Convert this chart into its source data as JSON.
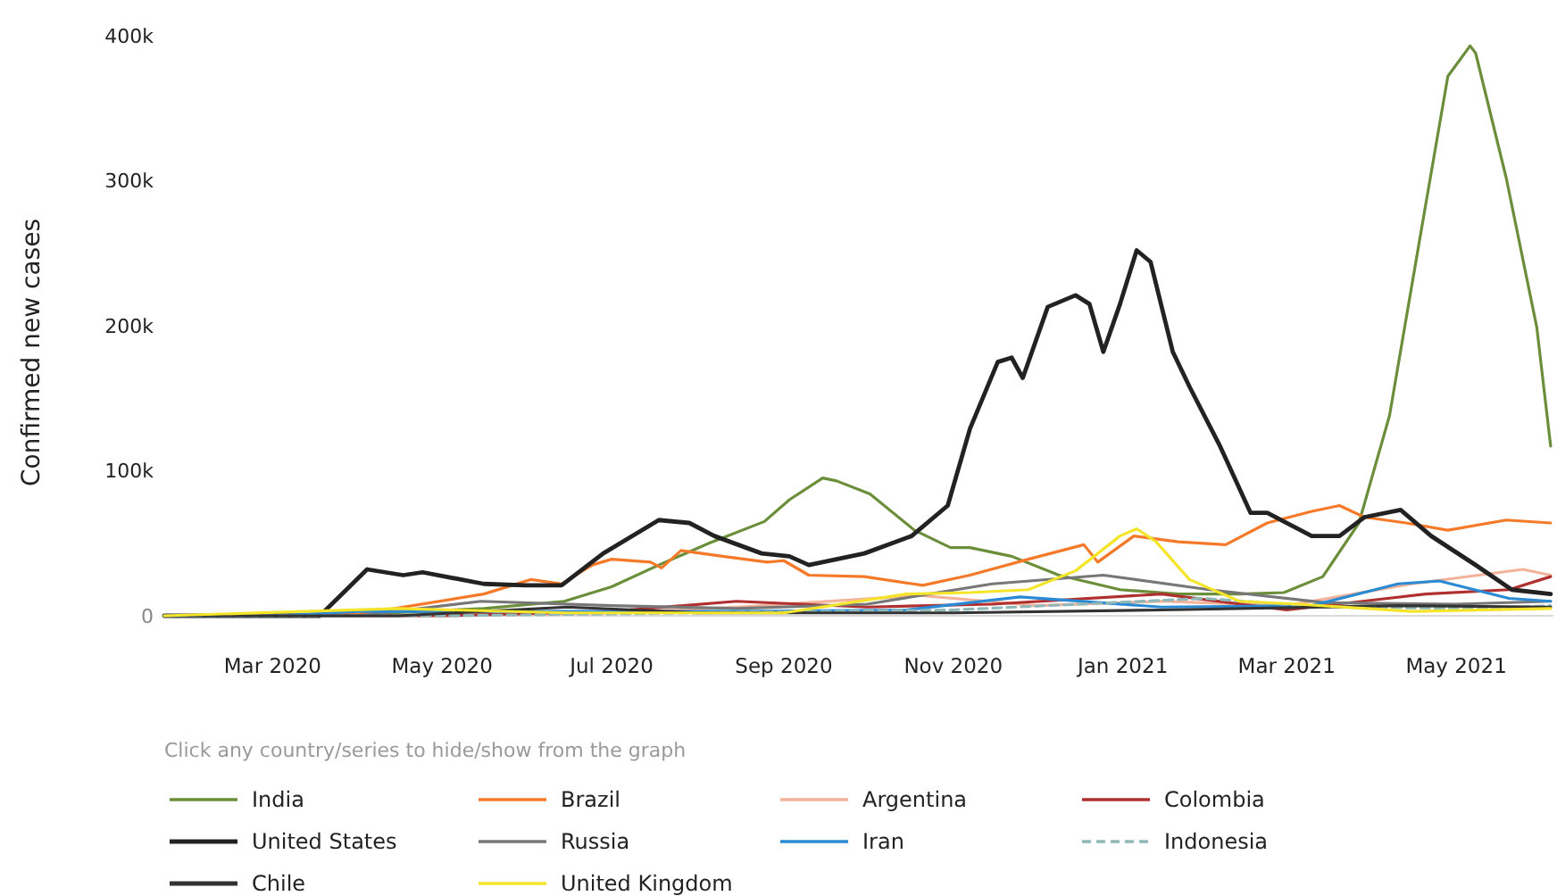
{
  "chart_data": {
    "type": "line",
    "ylabel": "Confirmed new cases",
    "xlim": [
      "2020-01-22",
      "2021-06-05"
    ],
    "xticks": [
      {
        "value": "2020-03-01",
        "label": "Mar 2020"
      },
      {
        "value": "2020-05-01",
        "label": "May 2020"
      },
      {
        "value": "2020-07-01",
        "label": "Jul 2020"
      },
      {
        "value": "2020-09-01",
        "label": "Sep 2020"
      },
      {
        "value": "2020-11-01",
        "label": "Nov 2020"
      },
      {
        "value": "2021-01-01",
        "label": "Jan 2021"
      },
      {
        "value": "2021-03-01",
        "label": "Mar 2021"
      },
      {
        "value": "2021-05-01",
        "label": "May 2021"
      }
    ],
    "ylim": [
      0,
      400000
    ],
    "yticks": [
      {
        "value": 0,
        "label": "0"
      },
      {
        "value": 100000,
        "label": "100k"
      },
      {
        "value": 200000,
        "label": "200k"
      },
      {
        "value": 300000,
        "label": "300k"
      },
      {
        "value": 400000,
        "label": "400k"
      }
    ],
    "grid": false,
    "legend": "bottom",
    "marker": "none",
    "line_style": "solid",
    "annotations": [
      "Click any country/series to hide/show from the graph"
    ],
    "series": [
      {
        "name": "India",
        "color": "#6b8e3a",
        "x": [
          "2020-01-22",
          "2020-04-01",
          "2020-05-16",
          "2020-06-14",
          "2020-07-01",
          "2020-07-18",
          "2020-08-05",
          "2020-08-25",
          "2020-09-03",
          "2020-09-15",
          "2020-09-20",
          "2020-10-02",
          "2020-10-18",
          "2020-10-31",
          "2020-11-07",
          "2020-11-22",
          "2020-12-09",
          "2020-12-31",
          "2021-01-21",
          "2021-02-12",
          "2021-02-28",
          "2021-03-14",
          "2021-03-27",
          "2021-04-07",
          "2021-04-18",
          "2021-04-28",
          "2021-05-06",
          "2021-05-08",
          "2021-05-19",
          "2021-05-30",
          "2021-06-04"
        ],
        "values": [
          0,
          1000,
          5000,
          10000,
          20000,
          35000,
          50000,
          65000,
          80000,
          95000,
          93000,
          84000,
          59000,
          47000,
          47000,
          41000,
          28000,
          18000,
          15000,
          15000,
          16000,
          27000,
          64000,
          138000,
          261000,
          372000,
          393000,
          388000,
          302000,
          199000,
          117000
        ]
      },
      {
        "name": "Brazil",
        "color": "#f47a2a",
        "x": [
          "2020-01-22",
          "2020-04-01",
          "2020-05-16",
          "2020-06-02",
          "2020-06-13",
          "2020-06-24",
          "2020-07-01",
          "2020-07-15",
          "2020-07-19",
          "2020-07-26",
          "2020-08-10",
          "2020-08-26",
          "2020-09-01",
          "2020-09-10",
          "2020-09-30",
          "2020-10-21",
          "2020-11-07",
          "2020-11-28",
          "2020-12-18",
          "2020-12-23",
          "2021-01-05",
          "2021-01-21",
          "2021-02-07",
          "2021-02-22",
          "2021-03-10",
          "2021-03-20",
          "2021-03-29",
          "2021-04-13",
          "2021-04-28",
          "2021-05-19",
          "2021-06-04"
        ],
        "values": [
          0,
          1000,
          15000,
          25000,
          22000,
          35000,
          39000,
          37000,
          33000,
          45000,
          41000,
          37000,
          38000,
          28000,
          27000,
          21000,
          28000,
          39000,
          49000,
          37000,
          55000,
          51000,
          49000,
          64000,
          72000,
          76000,
          68000,
          64000,
          59000,
          66000,
          64000
        ]
      },
      {
        "name": "Argentina",
        "color": "#f2b39a",
        "x": [
          "2020-01-22",
          "2020-05-01",
          "2020-07-01",
          "2020-08-15",
          "2020-10-20",
          "2020-12-01",
          "2021-01-15",
          "2021-03-01",
          "2021-04-15",
          "2021-05-25",
          "2021-06-04"
        ],
        "values": [
          0,
          0,
          2000,
          6000,
          14000,
          7000,
          10000,
          7000,
          22000,
          32000,
          28000
        ]
      },
      {
        "name": "Colombia",
        "color": "#b03030",
        "x": [
          "2020-01-22",
          "2020-05-01",
          "2020-07-01",
          "2020-08-15",
          "2020-10-01",
          "2020-11-15",
          "2021-01-15",
          "2021-03-01",
          "2021-04-20",
          "2021-05-20",
          "2021-06-04"
        ],
        "values": [
          0,
          0,
          3000,
          10000,
          6000,
          8000,
          15000,
          4000,
          15000,
          18000,
          27000
        ]
      },
      {
        "name": "United States",
        "color": "#222222",
        "x": [
          "2020-01-22",
          "2020-03-18",
          "2020-04-04",
          "2020-04-17",
          "2020-04-24",
          "2020-05-16",
          "2020-05-31",
          "2020-06-13",
          "2020-06-28",
          "2020-07-18",
          "2020-07-29",
          "2020-08-07",
          "2020-08-24",
          "2020-09-03",
          "2020-09-10",
          "2020-09-30",
          "2020-10-17",
          "2020-10-30",
          "2020-11-07",
          "2020-11-17",
          "2020-11-22",
          "2020-11-26",
          "2020-12-05",
          "2020-12-15",
          "2020-12-20",
          "2020-12-25",
          "2020-12-31",
          "2021-01-06",
          "2021-01-11",
          "2021-01-19",
          "2021-01-25",
          "2021-02-05",
          "2021-02-16",
          "2021-02-22",
          "2021-03-10",
          "2021-03-20",
          "2021-03-29",
          "2021-04-11",
          "2021-04-22",
          "2021-05-08",
          "2021-05-21",
          "2021-06-04"
        ],
        "values": [
          0,
          0,
          32000,
          28000,
          30000,
          22000,
          21000,
          21000,
          43000,
          66000,
          64000,
          55000,
          43000,
          41000,
          35000,
          43000,
          55000,
          76000,
          129000,
          175000,
          178000,
          164000,
          213000,
          221000,
          215000,
          182000,
          215000,
          252000,
          244000,
          182000,
          158000,
          117000,
          71000,
          71000,
          55000,
          55000,
          68000,
          73000,
          55000,
          35000,
          18000,
          15000
        ]
      },
      {
        "name": "Russia",
        "color": "#777777",
        "x": [
          "2020-01-22",
          "2020-04-01",
          "2020-05-15",
          "2020-07-01",
          "2020-08-15",
          "2020-10-01",
          "2020-11-15",
          "2020-12-25",
          "2021-02-01",
          "2021-03-15",
          "2021-05-01",
          "2021-06-04"
        ],
        "values": [
          0,
          0,
          10000,
          7000,
          5000,
          8000,
          22000,
          28000,
          18000,
          9000,
          8000,
          10000
        ]
      },
      {
        "name": "Iran",
        "color": "#2a8ad4",
        "x": [
          "2020-01-22",
          "2020-03-01",
          "2020-04-01",
          "2020-06-15",
          "2020-08-15",
          "2020-10-15",
          "2020-11-25",
          "2021-01-15",
          "2021-03-10",
          "2021-04-10",
          "2021-04-25",
          "2021-05-20",
          "2021-06-04"
        ],
        "values": [
          0,
          0,
          3000,
          3000,
          3000,
          4000,
          13000,
          6000,
          7000,
          22000,
          24000,
          12000,
          10000
        ]
      },
      {
        "name": "Indonesia",
        "color": "#8fb8b8",
        "line_style": "dashed",
        "x": [
          "2020-01-22",
          "2020-05-01",
          "2020-08-01",
          "2020-11-01",
          "2021-01-30",
          "2021-03-15",
          "2021-05-15",
          "2021-06-04"
        ],
        "values": [
          0,
          0,
          2000,
          4000,
          12000,
          6000,
          5000,
          7000
        ]
      },
      {
        "name": "Chile",
        "color": "#333333",
        "x": [
          "2020-01-22",
          "2020-04-15",
          "2020-06-15",
          "2020-08-01",
          "2020-11-01",
          "2021-01-15",
          "2021-04-10",
          "2021-06-04"
        ],
        "values": [
          0,
          0,
          6000,
          2000,
          2000,
          4000,
          7000,
          6000
        ]
      },
      {
        "name": "United Kingdom",
        "color": "#f5e52a",
        "x": [
          "2020-01-22",
          "2020-04-15",
          "2020-06-15",
          "2020-09-01",
          "2020-10-15",
          "2020-11-07",
          "2020-11-28",
          "2020-12-15",
          "2020-12-31",
          "2021-01-06",
          "2021-01-13",
          "2021-01-25",
          "2021-02-12",
          "2021-03-05",
          "2021-04-15",
          "2021-06-04"
        ],
        "values": [
          0,
          5000,
          2000,
          2000,
          15000,
          16000,
          18000,
          31000,
          55000,
          60000,
          51000,
          25000,
          10000,
          8000,
          3000,
          5000
        ]
      }
    ]
  }
}
